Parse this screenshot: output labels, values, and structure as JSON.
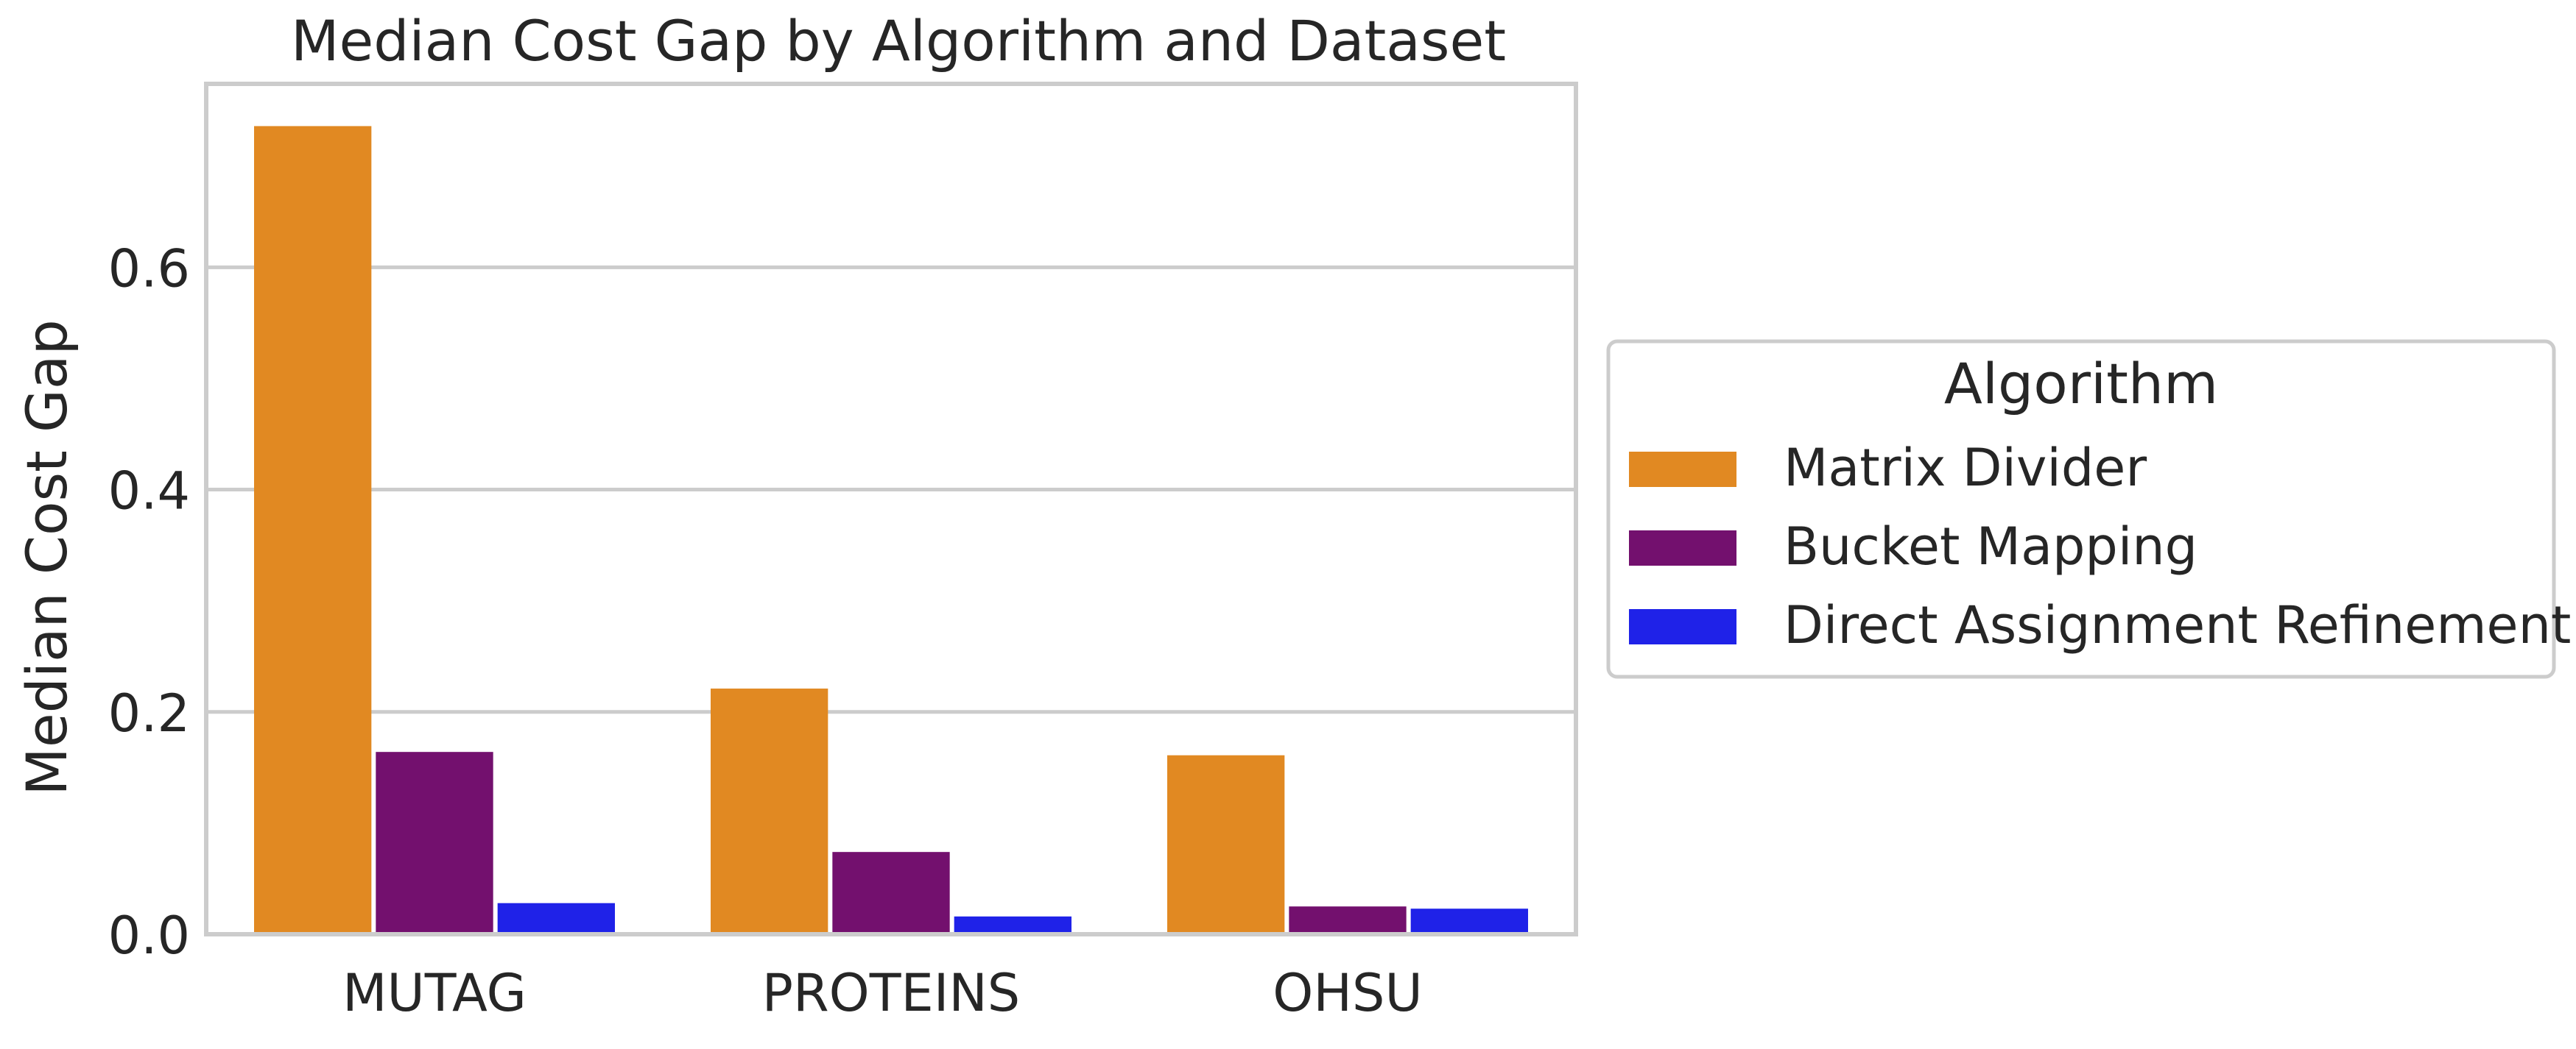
{
  "chart_data": {
    "type": "bar",
    "title": "Median Cost Gap by Algorithm and Dataset",
    "xlabel": "",
    "ylabel": "Median Cost Gap",
    "categories": [
      "MUTAG",
      "PROTEINS",
      "OHSU"
    ],
    "series": [
      {
        "name": "Matrix Divider",
        "values": [
          0.727,
          0.221,
          0.161
        ],
        "color": "#E18922"
      },
      {
        "name": "Bucket Mapping",
        "values": [
          0.164,
          0.074,
          0.025
        ],
        "color": "#73106E"
      },
      {
        "name": "Direct Assignment Refinement",
        "values": [
          0.028,
          0.016,
          0.023
        ],
        "color": "#1F22E8"
      }
    ],
    "ylim": [
      0,
      0.765
    ],
    "yticks": [
      0.0,
      0.2,
      0.4,
      0.6
    ],
    "ytick_labels": [
      "0.0",
      "0.2",
      "0.4",
      "0.6"
    ],
    "grid": {
      "y": true,
      "x": false
    },
    "legend": {
      "title": "Algorithm",
      "placement": "center-right outside"
    }
  }
}
